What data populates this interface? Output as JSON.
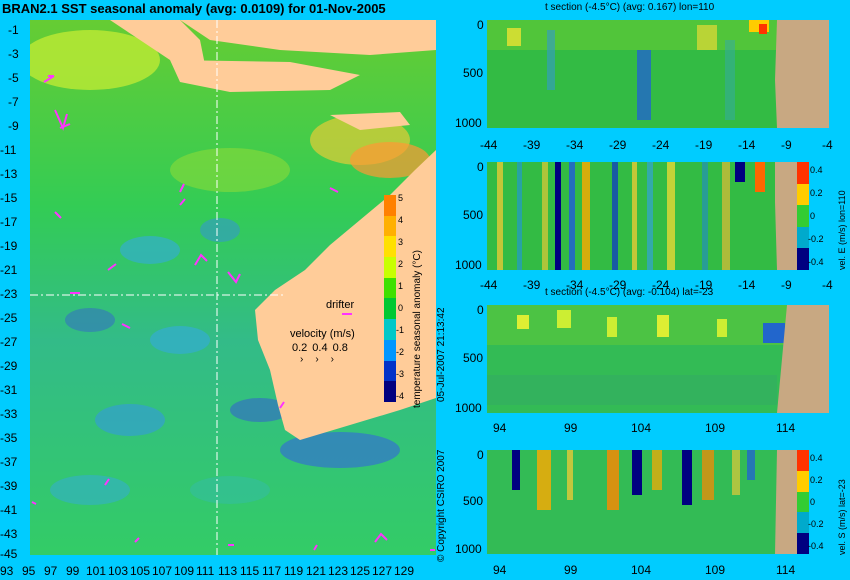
{
  "title": "BRAN2.1 SST seasonal anomaly (avg: 0.0109) for 01-Nov-2005",
  "map": {
    "lat_ticks": [
      "-1",
      "-3",
      "-5",
      "-7",
      "-9",
      "-11",
      "-13",
      "-15",
      "-17",
      "-19",
      "-21",
      "-23",
      "-25",
      "-27",
      "-29",
      "-31",
      "-33",
      "-35",
      "-37",
      "-39",
      "-41",
      "-43",
      "-45"
    ],
    "lon_ticks": [
      "93",
      "95",
      "97",
      "99",
      "101",
      "103",
      "105",
      "107",
      "109",
      "111",
      "113",
      "115",
      "117",
      "119",
      "121",
      "123",
      "125",
      "127",
      "129"
    ],
    "drifter_label": "drifter",
    "velocity_label": "velocity (m/s)",
    "velocity_scale": [
      "0.2",
      "0.4",
      "0.8"
    ],
    "colorbar": {
      "label": "temperature seasonal anomaly (°C)",
      "ticks": [
        "5",
        "4",
        "3",
        "2",
        "1",
        "0",
        "-1",
        "-2",
        "-3",
        "-4"
      ],
      "colors": [
        "#ff8000",
        "#ffb000",
        "#ffe000",
        "#c8ff00",
        "#40e000",
        "#00c832",
        "#00c8c8",
        "#0096ff",
        "#0032c8",
        "#00007f"
      ]
    },
    "colors": {
      "land": "#ffcc99",
      "ocean_base": "#33cc33",
      "drifter": "#ff33ff"
    }
  },
  "panels": [
    {
      "title": "t section (-4.5°C) (avg: 0.167) lon=110",
      "x_ticks": [
        "-44",
        "-39",
        "-34",
        "-29",
        "-24",
        "-19",
        "-14",
        "-9",
        "-4"
      ],
      "y_ticks": [
        "0",
        "500",
        "1000"
      ]
    },
    {
      "title": "",
      "x_ticks": [
        "-44",
        "-39",
        "-34",
        "-29",
        "-24",
        "-19",
        "-14",
        "-9",
        "-4"
      ],
      "y_ticks": [
        "0",
        "500",
        "1000"
      ],
      "colorbar_label": "vel. E (m/s) lon=110",
      "colorbar_ticks": [
        "0.4",
        "0.2",
        "0",
        "-0.2",
        "-0.4"
      ]
    },
    {
      "title": "t section (-4.5°C) (avg: -0.104) lat=-23",
      "x_ticks": [
        "94",
        "99",
        "104",
        "109",
        "114"
      ],
      "y_ticks": [
        "0",
        "500",
        "1000"
      ]
    },
    {
      "title": "",
      "x_ticks": [
        "94",
        "99",
        "104",
        "109",
        "114"
      ],
      "y_ticks": [
        "0",
        "500",
        "1000"
      ],
      "colorbar_label": "vel. S (m/s) lat=-23",
      "colorbar_ticks": [
        "0.4",
        "0.2",
        "0",
        "-0.2",
        "-0.4"
      ]
    }
  ],
  "copyright": "© Copyright CSIRO 2007",
  "timestamp": "05-Jul-2007 21:13:42",
  "colors": {
    "background": "#00ccff",
    "land_section": "#c8a882"
  }
}
